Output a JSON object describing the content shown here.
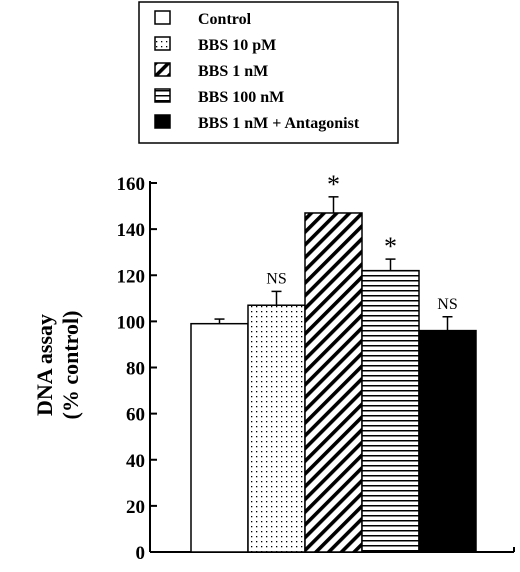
{
  "chart_data": {
    "type": "bar",
    "title": "",
    "xlabel": "",
    "ylabel": [
      "DNA assay",
      "(% control)"
    ],
    "ylim": [
      0,
      160
    ],
    "yticks": [
      0,
      20,
      40,
      60,
      80,
      100,
      120,
      140,
      160
    ],
    "grid": false,
    "legend_position": "top",
    "series": [
      {
        "name": "Control",
        "value": 99,
        "error": 2,
        "annotation": "",
        "pattern": "empty"
      },
      {
        "name": "BBS 10 pM",
        "value": 107,
        "error": 6,
        "annotation": "NS",
        "pattern": "dots"
      },
      {
        "name": "BBS 1 nM",
        "value": 147,
        "error": 7,
        "annotation": "*",
        "pattern": "diagonal"
      },
      {
        "name": "BBS 100 nM",
        "value": 122,
        "error": 5,
        "annotation": "*",
        "pattern": "horizontal"
      },
      {
        "name": "BBS 1 nM + Antagonist",
        "value": 96,
        "error": 6,
        "annotation": "NS",
        "pattern": "solid"
      }
    ]
  }
}
